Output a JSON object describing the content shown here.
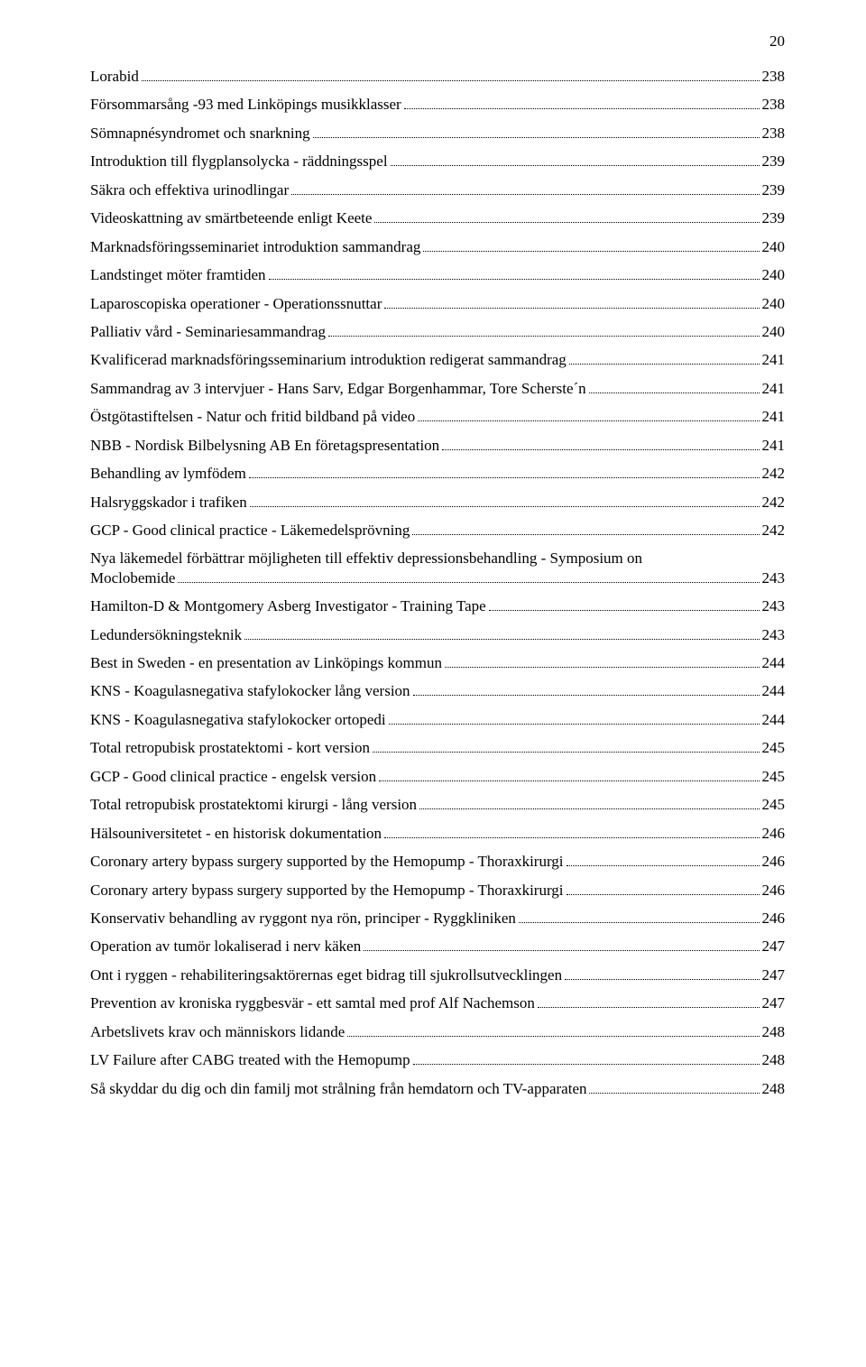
{
  "page_number": "20",
  "entries": [
    {
      "title": "Lorabid",
      "page": "238"
    },
    {
      "title": "Försommarsång -93 med Linköpings musikklasser",
      "page": "238"
    },
    {
      "title": "Sömnapnésyndromet och snarkning",
      "page": "238"
    },
    {
      "title": "Introduktion till flygplansolycka - räddningsspel",
      "page": "239"
    },
    {
      "title": "Säkra och effektiva urinodlingar",
      "page": "239"
    },
    {
      "title": "Videoskattning av smärtbeteende enligt Keete",
      "page": "239"
    },
    {
      "title": "Marknadsföringsseminariet introduktion sammandrag",
      "page": "240"
    },
    {
      "title": "Landstinget möter framtiden",
      "page": "240"
    },
    {
      "title": "Laparoscopiska operationer - Operationssnuttar",
      "page": "240"
    },
    {
      "title": "Palliativ vård - Seminariesammandrag",
      "page": "240"
    },
    {
      "title": "Kvalificerad marknadsföringsseminarium introduktion redigerat sammandrag",
      "page": "241"
    },
    {
      "title": "Sammandrag av 3 intervjuer - Hans Sarv, Edgar Borgenhammar, Tore Scherste´n",
      "page": "241"
    },
    {
      "title": "Östgötastiftelsen - Natur och fritid bildband på video",
      "page": "241"
    },
    {
      "title": "NBB - Nordisk Bilbelysning AB En företagspresentation",
      "page": "241"
    },
    {
      "title": "Behandling av lymfödem",
      "page": "242"
    },
    {
      "title": "Halsryggskador i trafiken",
      "page": "242"
    },
    {
      "title": "GCP - Good clinical practice - Läkemedelsprövning",
      "page": "242"
    },
    {
      "title_line1": "Nya läkemedel förbättrar möjligheten till effektiv depressionsbehandling - Symposium on",
      "title_line2": "Moclobemide",
      "page": "243",
      "multiline": true
    },
    {
      "title": "Hamilton-D & Montgomery Asberg Investigator - Training Tape",
      "page": "243"
    },
    {
      "title": "Ledundersökningsteknik",
      "page": "243"
    },
    {
      "title": "Best in Sweden - en presentation av Linköpings kommun",
      "page": "244"
    },
    {
      "title": "KNS - Koagulasnegativa stafylokocker lång version",
      "page": "244"
    },
    {
      "title": "KNS - Koagulasnegativa stafylokocker ortopedi",
      "page": "244"
    },
    {
      "title": "Total retropubisk prostatektomi - kort version",
      "page": "245"
    },
    {
      "title": "GCP - Good clinical practice - engelsk version",
      "page": "245"
    },
    {
      "title": "Total retropubisk prostatektomi kirurgi - lång version",
      "page": "245"
    },
    {
      "title": "Hälsouniversitetet - en historisk dokumentation",
      "page": "246"
    },
    {
      "title": "Coronary artery bypass surgery supported by the Hemopump - Thoraxkirurgi",
      "page": "246"
    },
    {
      "title": "Coronary artery bypass surgery supported by the Hemopump - Thoraxkirurgi",
      "page": "246"
    },
    {
      "title": "Konservativ behandling av ryggont nya rön, principer - Ryggkliniken",
      "page": "246"
    },
    {
      "title": "Operation av tumör lokaliserad i nerv käken",
      "page": "247"
    },
    {
      "title": "Ont i ryggen - rehabiliteringsaktörernas eget bidrag till sjukrollsutvecklingen",
      "page": "247"
    },
    {
      "title": "Prevention av kroniska ryggbesvär - ett samtal med prof Alf Nachemson",
      "page": "247"
    },
    {
      "title": "Arbetslivets krav och människors lidande",
      "page": "248"
    },
    {
      "title": "LV Failure after CABG treated with the Hemopump",
      "page": "248"
    },
    {
      "title": "Så skyddar du dig och din familj mot strålning från hemdatorn och TV-apparaten",
      "page": "248"
    }
  ]
}
